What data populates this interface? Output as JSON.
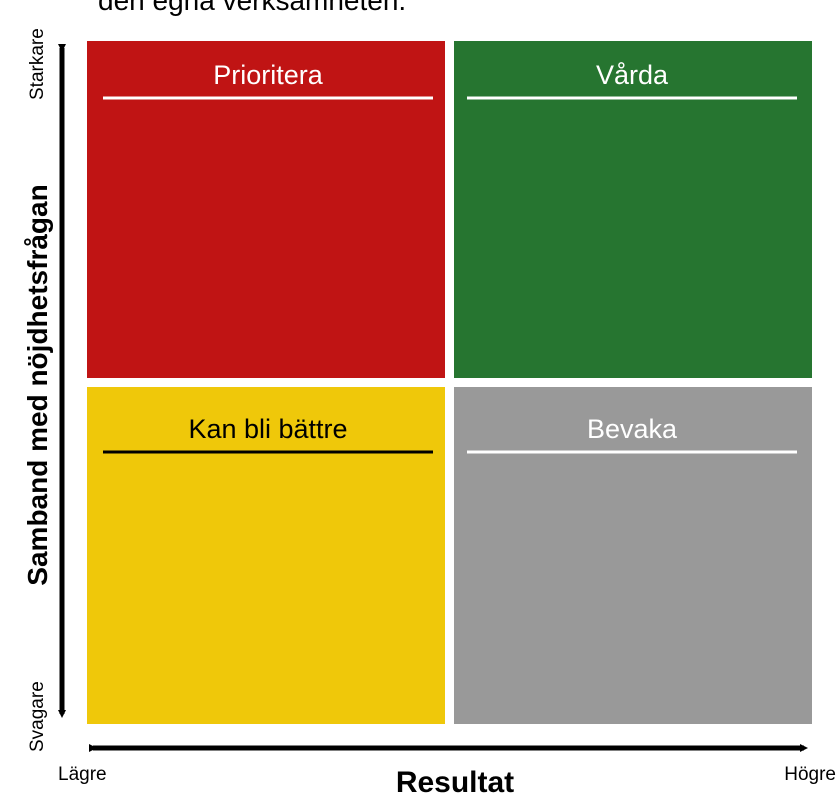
{
  "header": {
    "text": "den egna verksamheten."
  },
  "y_axis": {
    "label": "Samband med nöjdhetsfrågan",
    "top": "Starkare",
    "bottom": "Svagare"
  },
  "x_axis": {
    "label": "Resultat",
    "left": "Lägre",
    "right": "Högre"
  },
  "quadrants": [
    {
      "label": "Prioritera"
    },
    {
      "label": "Vårda"
    },
    {
      "label": "Kan bli bättre"
    },
    {
      "label": "Bevaka"
    }
  ]
}
